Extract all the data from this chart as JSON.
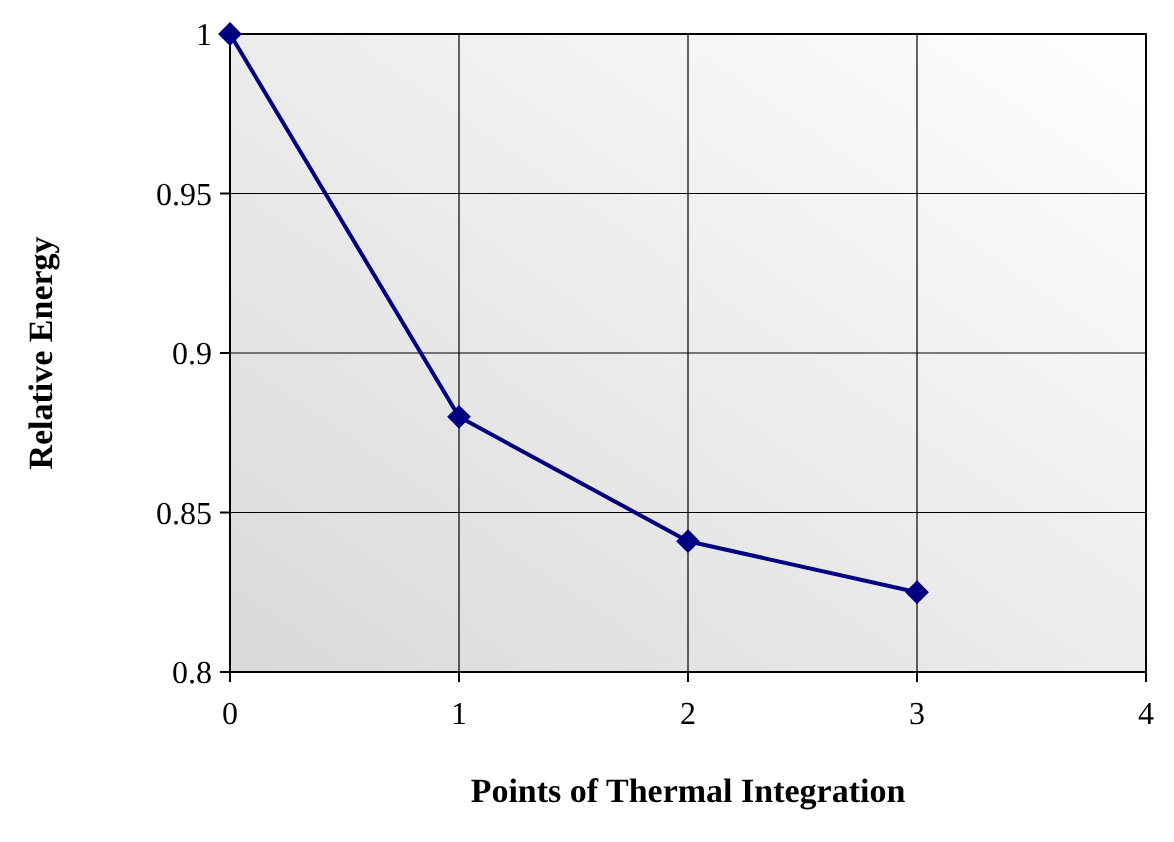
{
  "chart_data": {
    "type": "line",
    "xlabel": "Points of Thermal Integration",
    "ylabel": "Relative Energy",
    "x": [
      0,
      1,
      2,
      3
    ],
    "series": [
      {
        "color": "#000080",
        "values": [
          1,
          0.88,
          0.841,
          0.825
        ]
      }
    ],
    "xlim": [
      0,
      4
    ],
    "xticks": [
      0,
      1,
      2,
      3,
      4
    ],
    "ylim": [
      0.8,
      1
    ],
    "yticks": [
      {
        "value": 0.8,
        "label": "0.8"
      },
      {
        "value": 0.85,
        "label": "0.85"
      },
      {
        "value": 0.9,
        "label": "0.9"
      },
      {
        "value": 0.95,
        "label": "0.95"
      },
      {
        "value": 1,
        "label": "1"
      }
    ],
    "grid": true,
    "marker": "diamond",
    "line_style": "solid"
  }
}
